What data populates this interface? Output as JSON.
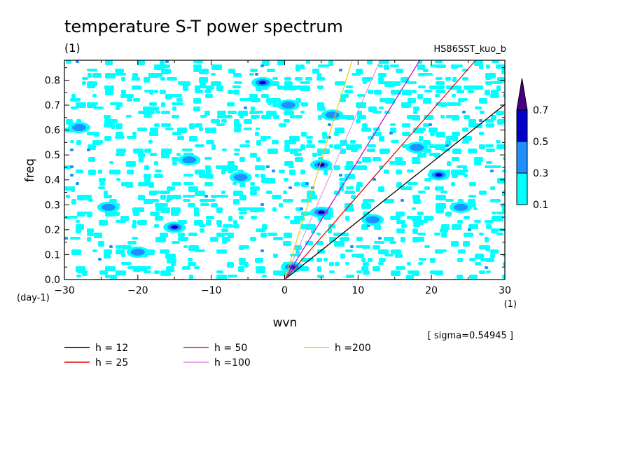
{
  "chart_data": {
    "type": "heatmap",
    "title": "temperature S-T power spectrum",
    "subtitle_left": "(1)",
    "subtitle_right": "HS86SST_kuo_b",
    "xlabel": "wvn",
    "ylabel": "freq",
    "x_unit": "(1)",
    "y_unit": "(day-1)",
    "xlim": [
      -30,
      30
    ],
    "ylim": [
      0,
      0.88
    ],
    "x_ticks": [
      -30,
      -20,
      -10,
      0,
      10,
      20,
      30
    ],
    "y_ticks": [
      0.0,
      0.1,
      0.2,
      0.3,
      0.4,
      0.5,
      0.6,
      0.7,
      0.8
    ],
    "x_tick_labels": [
      "−30",
      "−20",
      "−10",
      "0",
      "10",
      "20",
      "30"
    ],
    "y_tick_labels": [
      "0.0",
      "0.1",
      "0.2",
      "0.3",
      "0.4",
      "0.5",
      "0.6",
      "0.7",
      "0.8"
    ],
    "sigma_note": "[ sigma=0.54945 ]",
    "colorbar": {
      "levels": [
        0.1,
        0.3,
        0.5,
        0.7
      ],
      "labels": [
        "0.1",
        "0.3",
        "0.5",
        "0.7"
      ],
      "colors": [
        "#00ffff",
        "#1e90ff",
        "#0000c8",
        "#4b0082"
      ]
    },
    "dispersion_curves": [
      {
        "label": "h = 12",
        "h": 12,
        "color": "#000000",
        "stroke_width": 1.3
      },
      {
        "label": "h = 25",
        "h": 25,
        "color": "#e00000",
        "stroke_width": 1.2
      },
      {
        "label": "h = 50",
        "h": 50,
        "color": "#cc00cc",
        "stroke_width": 1.2
      },
      {
        "label": "h =100",
        "h": 100,
        "color": "#dd88dd",
        "stroke_width": 1.0
      },
      {
        "label": "h =200",
        "h": 200,
        "color": "#f0c800",
        "stroke_width": 1.2
      }
    ],
    "power_features": [
      {
        "k": -3.0,
        "f": 0.79,
        "level": 0.5
      },
      {
        "k": 5.0,
        "f": 0.46,
        "level": 0.5
      },
      {
        "k": 5.0,
        "f": 0.27,
        "level": 0.5
      },
      {
        "k": 21.0,
        "f": 0.42,
        "level": 0.5
      },
      {
        "k": 1.0,
        "f": 0.05,
        "level": 0.5
      },
      {
        "k": -15.0,
        "f": 0.21,
        "level": 0.5
      },
      {
        "k": -24.0,
        "f": 0.29,
        "level": 0.3
      },
      {
        "k": -28.0,
        "f": 0.61,
        "level": 0.3
      },
      {
        "k": 12.0,
        "f": 0.24,
        "level": 0.3
      },
      {
        "k": 18.0,
        "f": 0.53,
        "level": 0.3
      },
      {
        "k": 0.5,
        "f": 0.7,
        "level": 0.3
      },
      {
        "k": -13.0,
        "f": 0.48,
        "level": 0.3
      },
      {
        "k": 6.5,
        "f": 0.66,
        "level": 0.3
      },
      {
        "k": 24.0,
        "f": 0.29,
        "level": 0.3
      },
      {
        "k": -6.0,
        "f": 0.41,
        "level": 0.3
      },
      {
        "k": -20.0,
        "f": 0.11,
        "level": 0.3
      }
    ]
  }
}
